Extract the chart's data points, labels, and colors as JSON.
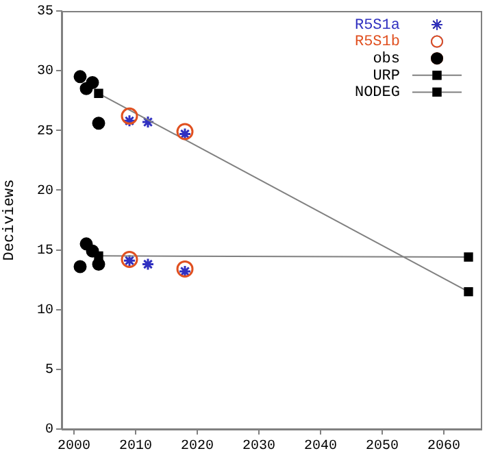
{
  "chart_data": {
    "type": "scatter",
    "ylabel": "Deciviews",
    "xlim": [
      1998,
      2066
    ],
    "ylim": [
      0,
      35
    ],
    "xticks": [
      2000,
      2010,
      2020,
      2030,
      2040,
      2050,
      2060
    ],
    "yticks": [
      0,
      5,
      10,
      15,
      20,
      25,
      30,
      35
    ],
    "grid": false,
    "legend": "top right",
    "series": [
      {
        "name": "R5S1a",
        "marker": "cross",
        "color": "#3030c0",
        "x": [
          2009,
          2012,
          2018,
          2009,
          2012,
          2018
        ],
        "values": [
          25.8,
          25.7,
          24.7,
          14.1,
          13.8,
          13.2
        ]
      },
      {
        "name": "R5S1b",
        "marker": "circle",
        "color": "#e05020",
        "x": [
          2009,
          2018,
          2009,
          2018
        ],
        "values": [
          26.2,
          24.9,
          14.2,
          13.4
        ]
      },
      {
        "name": "obs",
        "marker": "circle",
        "color": "#000000",
        "x": [
          2001,
          2002,
          2003,
          2004,
          2001,
          2002,
          2003,
          2004
        ],
        "values": [
          29.5,
          28.5,
          29.0,
          25.6,
          13.6,
          15.5,
          14.9,
          13.8
        ]
      },
      {
        "name": "URP",
        "type": "line",
        "marker": "square",
        "color": "#000000",
        "x": [
          2004,
          2064
        ],
        "values": [
          28.1,
          11.5
        ]
      },
      {
        "name": "NODEG",
        "type": "line",
        "marker": "square",
        "color": "#000000",
        "x": [
          2004,
          2064
        ],
        "values": [
          14.5,
          14.4
        ]
      }
    ]
  }
}
